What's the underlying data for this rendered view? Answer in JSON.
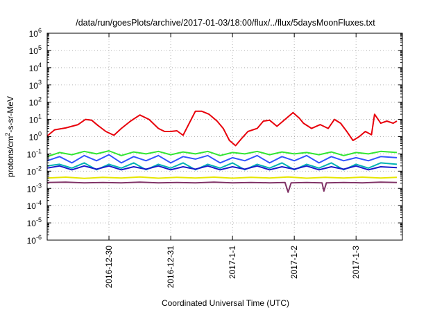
{
  "chart_data": {
    "type": "line",
    "title": "/data/run/goesPlots/archive/2017-01-03/18:00/flux/../flux/5daysMoonFluxes.txt",
    "xlabel": "Coordinated Universal Time (UTC)",
    "ylabel": "protons/cm²-s-sr-MeV",
    "yscale": "log",
    "ylim_exponent": [
      -6,
      6
    ],
    "y_ticks": [
      {
        "base": "10",
        "exp": "-6",
        "e": -6
      },
      {
        "base": "10",
        "exp": "-5",
        "e": -5
      },
      {
        "base": "10",
        "exp": "-4",
        "e": -4
      },
      {
        "base": "10",
        "exp": "-3",
        "e": -3
      },
      {
        "base": "10",
        "exp": "-2",
        "e": -2
      },
      {
        "base": "10",
        "exp": "-1",
        "e": -1
      },
      {
        "base": "10",
        "exp": "0",
        "e": 0
      },
      {
        "base": "10",
        "exp": "1",
        "e": 1
      },
      {
        "base": "10",
        "exp": "2",
        "e": 2
      },
      {
        "base": "10",
        "exp": "3",
        "e": 3
      },
      {
        "base": "10",
        "exp": "4",
        "e": 4
      },
      {
        "base": "10",
        "exp": "5",
        "e": 5
      },
      {
        "base": "10",
        "exp": "6",
        "e": 6
      }
    ],
    "x_unit": "day",
    "xlim": [
      "2016-12-29",
      "2017-01-03T18:00"
    ],
    "x_ticks": [
      {
        "label": "2016-12-30",
        "x": "2016-12-30"
      },
      {
        "label": "2016-12-31",
        "x": "2016-12-31"
      },
      {
        "label": "2017-1-1",
        "x": "2017-01-01"
      },
      {
        "label": "2017-1-2",
        "x": "2017-01-02"
      },
      {
        "label": "2017-1-3",
        "x": "2017-01-03"
      }
    ],
    "grid": true,
    "legend": "none",
    "series": [
      {
        "color": "#e8000b",
        "points": [
          [
            0,
            1.1
          ],
          [
            0.12,
            2.5
          ],
          [
            0.3,
            3.2
          ],
          [
            0.5,
            5
          ],
          [
            0.62,
            10
          ],
          [
            0.72,
            9
          ],
          [
            0.82,
            4.5
          ],
          [
            0.95,
            2
          ],
          [
            1.08,
            1.2
          ],
          [
            1.2,
            3
          ],
          [
            1.35,
            8
          ],
          [
            1.5,
            18
          ],
          [
            1.65,
            10
          ],
          [
            1.8,
            3
          ],
          [
            1.9,
            2
          ],
          [
            2.0,
            2
          ],
          [
            2.1,
            2.2
          ],
          [
            2.2,
            1.2
          ],
          [
            2.3,
            6
          ],
          [
            2.4,
            30
          ],
          [
            2.5,
            30
          ],
          [
            2.62,
            20
          ],
          [
            2.75,
            8
          ],
          [
            2.85,
            3
          ],
          [
            2.95,
            0.6
          ],
          [
            3.05,
            0.3
          ],
          [
            3.15,
            0.8
          ],
          [
            3.25,
            2
          ],
          [
            3.4,
            3
          ],
          [
            3.5,
            8
          ],
          [
            3.6,
            9
          ],
          [
            3.72,
            4
          ],
          [
            3.85,
            10
          ],
          [
            3.98,
            25
          ],
          [
            4.08,
            12
          ],
          [
            4.15,
            6
          ],
          [
            4.28,
            3
          ],
          [
            4.42,
            5
          ],
          [
            4.55,
            3
          ],
          [
            4.65,
            10
          ],
          [
            4.75,
            6
          ],
          [
            4.85,
            2
          ],
          [
            4.95,
            0.6
          ],
          [
            5.05,
            1
          ],
          [
            5.15,
            2
          ],
          [
            5.25,
            1.3
          ],
          [
            5.3,
            20
          ],
          [
            5.4,
            6
          ],
          [
            5.5,
            8
          ],
          [
            5.6,
            6
          ],
          [
            5.66,
            8
          ]
        ]
      },
      {
        "color": "#33e633",
        "points": [
          [
            0,
            0.07
          ],
          [
            0.2,
            0.12
          ],
          [
            0.4,
            0.09
          ],
          [
            0.6,
            0.14
          ],
          [
            0.8,
            0.1
          ],
          [
            1.0,
            0.15
          ],
          [
            1.2,
            0.08
          ],
          [
            1.4,
            0.13
          ],
          [
            1.6,
            0.1
          ],
          [
            1.8,
            0.14
          ],
          [
            2.0,
            0.09
          ],
          [
            2.2,
            0.13
          ],
          [
            2.4,
            0.1
          ],
          [
            2.6,
            0.14
          ],
          [
            2.8,
            0.08
          ],
          [
            3.0,
            0.12
          ],
          [
            3.2,
            0.1
          ],
          [
            3.4,
            0.14
          ],
          [
            3.6,
            0.09
          ],
          [
            3.8,
            0.13
          ],
          [
            4.0,
            0.1
          ],
          [
            4.2,
            0.12
          ],
          [
            4.4,
            0.09
          ],
          [
            4.6,
            0.13
          ],
          [
            4.8,
            0.08
          ],
          [
            5.0,
            0.12
          ],
          [
            5.2,
            0.1
          ],
          [
            5.4,
            0.14
          ],
          [
            5.66,
            0.12
          ]
        ]
      },
      {
        "color": "#3355ff",
        "points": [
          [
            0,
            0.04
          ],
          [
            0.2,
            0.07
          ],
          [
            0.4,
            0.03
          ],
          [
            0.6,
            0.08
          ],
          [
            0.8,
            0.04
          ],
          [
            1.0,
            0.09
          ],
          [
            1.2,
            0.03
          ],
          [
            1.4,
            0.07
          ],
          [
            1.6,
            0.04
          ],
          [
            1.8,
            0.08
          ],
          [
            2.0,
            0.03
          ],
          [
            2.2,
            0.07
          ],
          [
            2.4,
            0.05
          ],
          [
            2.6,
            0.08
          ],
          [
            2.8,
            0.03
          ],
          [
            3.0,
            0.06
          ],
          [
            3.2,
            0.04
          ],
          [
            3.4,
            0.08
          ],
          [
            3.6,
            0.03
          ],
          [
            3.8,
            0.07
          ],
          [
            4.0,
            0.04
          ],
          [
            4.2,
            0.08
          ],
          [
            4.4,
            0.03
          ],
          [
            4.6,
            0.07
          ],
          [
            4.8,
            0.04
          ],
          [
            5.0,
            0.06
          ],
          [
            5.2,
            0.04
          ],
          [
            5.4,
            0.07
          ],
          [
            5.66,
            0.06
          ]
        ]
      },
      {
        "color": "#00b3b3",
        "points": [
          [
            0,
            0.02
          ],
          [
            0.2,
            0.025
          ],
          [
            0.4,
            0.015
          ],
          [
            0.6,
            0.03
          ],
          [
            0.8,
            0.012
          ],
          [
            1.0,
            0.025
          ],
          [
            1.2,
            0.015
          ],
          [
            1.4,
            0.03
          ],
          [
            1.6,
            0.012
          ],
          [
            1.8,
            0.025
          ],
          [
            2.0,
            0.015
          ],
          [
            2.2,
            0.03
          ],
          [
            2.4,
            0.012
          ],
          [
            2.6,
            0.025
          ],
          [
            2.8,
            0.015
          ],
          [
            3.0,
            0.03
          ],
          [
            3.2,
            0.012
          ],
          [
            3.4,
            0.025
          ],
          [
            3.6,
            0.015
          ],
          [
            3.8,
            0.03
          ],
          [
            4.0,
            0.012
          ],
          [
            4.2,
            0.025
          ],
          [
            4.4,
            0.015
          ],
          [
            4.6,
            0.03
          ],
          [
            4.8,
            0.012
          ],
          [
            5.0,
            0.025
          ],
          [
            5.2,
            0.015
          ],
          [
            5.4,
            0.03
          ],
          [
            5.66,
            0.025
          ]
        ]
      },
      {
        "color": "#1a1acc",
        "points": [
          [
            0,
            0.015
          ],
          [
            0.2,
            0.02
          ],
          [
            0.4,
            0.012
          ],
          [
            0.6,
            0.02
          ],
          [
            0.8,
            0.013
          ],
          [
            1.0,
            0.02
          ],
          [
            1.2,
            0.012
          ],
          [
            1.4,
            0.018
          ],
          [
            1.6,
            0.013
          ],
          [
            1.8,
            0.02
          ],
          [
            2.0,
            0.012
          ],
          [
            2.2,
            0.018
          ],
          [
            2.4,
            0.013
          ],
          [
            2.6,
            0.02
          ],
          [
            2.8,
            0.012
          ],
          [
            3.0,
            0.018
          ],
          [
            3.2,
            0.013
          ],
          [
            3.4,
            0.02
          ],
          [
            3.6,
            0.012
          ],
          [
            3.8,
            0.018
          ],
          [
            4.0,
            0.013
          ],
          [
            4.2,
            0.02
          ],
          [
            4.4,
            0.012
          ],
          [
            4.6,
            0.018
          ],
          [
            4.8,
            0.013
          ],
          [
            5.0,
            0.02
          ],
          [
            5.2,
            0.012
          ],
          [
            5.4,
            0.018
          ],
          [
            5.66,
            0.016
          ]
        ]
      },
      {
        "color": "#e6e600",
        "points": [
          [
            0,
            0.004
          ],
          [
            0.3,
            0.0045
          ],
          [
            0.6,
            0.0038
          ],
          [
            0.9,
            0.0044
          ],
          [
            1.2,
            0.004
          ],
          [
            1.5,
            0.0046
          ],
          [
            1.8,
            0.0039
          ],
          [
            2.1,
            0.0044
          ],
          [
            2.4,
            0.004
          ],
          [
            2.7,
            0.0045
          ],
          [
            3.0,
            0.0039
          ],
          [
            3.3,
            0.0044
          ],
          [
            3.6,
            0.004
          ],
          [
            3.9,
            0.0046
          ],
          [
            4.2,
            0.0039
          ],
          [
            4.5,
            0.0044
          ],
          [
            4.8,
            0.004
          ],
          [
            5.1,
            0.0045
          ],
          [
            5.4,
            0.004
          ],
          [
            5.66,
            0.0044
          ]
        ]
      },
      {
        "color": "#803366",
        "points": [
          [
            0,
            0.0022
          ],
          [
            0.3,
            0.0023
          ],
          [
            0.6,
            0.0021
          ],
          [
            0.9,
            0.0022
          ],
          [
            1.2,
            0.0021
          ],
          [
            1.5,
            0.0023
          ],
          [
            1.8,
            0.0021
          ],
          [
            2.1,
            0.0022
          ],
          [
            2.4,
            0.0021
          ],
          [
            2.7,
            0.0023
          ],
          [
            3.0,
            0.0021
          ],
          [
            3.3,
            0.0022
          ],
          [
            3.6,
            0.0021
          ],
          [
            3.85,
            0.0022
          ],
          [
            3.9,
            0.0006
          ],
          [
            3.95,
            0.0021
          ],
          [
            4.2,
            0.0022
          ],
          [
            4.45,
            0.0021
          ],
          [
            4.48,
            0.0007
          ],
          [
            4.52,
            0.0021
          ],
          [
            4.8,
            0.0022
          ],
          [
            5.1,
            0.0021
          ],
          [
            5.4,
            0.0023
          ],
          [
            5.66,
            0.0022
          ]
        ]
      }
    ]
  }
}
